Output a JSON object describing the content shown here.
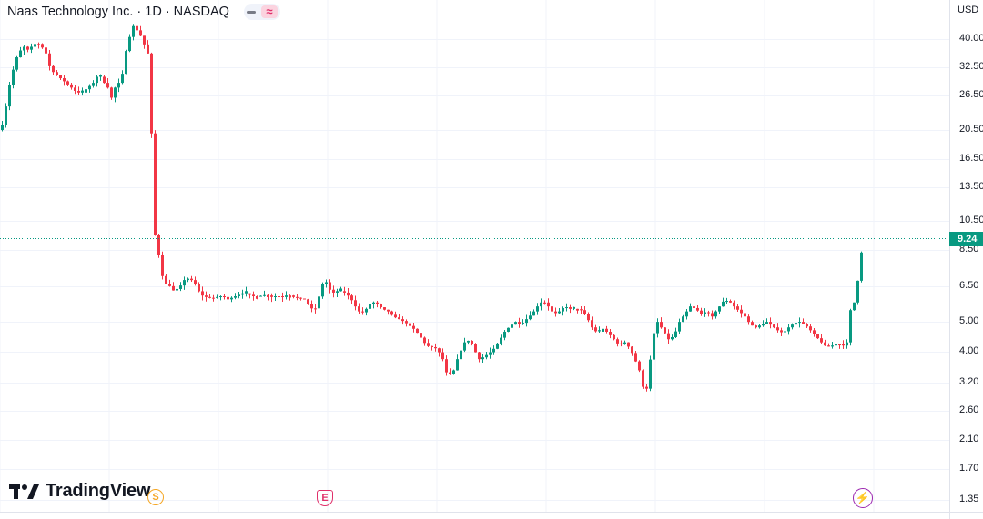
{
  "header": {
    "title": "Naas Technology Inc. · 1D · NASDAQ",
    "currency": "USD"
  },
  "logo": {
    "text": "TradingView"
  },
  "events": {
    "split": "S",
    "earnings": "E",
    "dividend": "⚡"
  },
  "colors": {
    "up": "#089981",
    "down": "#f23645",
    "grid": "#f0f3fa",
    "accent": "#089981"
  },
  "chart_data": {
    "type": "candlestick",
    "symbol": "Naas Technology Inc.",
    "interval": "1D",
    "exchange": "NASDAQ",
    "y_scale": "log",
    "ylim": [
      1.3,
      48
    ],
    "current_price": 9.24,
    "y_ticks": [
      "40.00",
      "32.50",
      "26.50",
      "20.50",
      "16.50",
      "13.50",
      "10.50",
      "8.50",
      "6.50",
      "5.00",
      "4.00",
      "3.20",
      "2.60",
      "2.10",
      "1.70",
      "1.35"
    ],
    "anchors": [
      [
        0,
        20.5
      ],
      [
        4,
        22
      ],
      [
        8,
        27
      ],
      [
        12,
        30
      ],
      [
        16,
        34
      ],
      [
        20,
        36
      ],
      [
        25,
        38
      ],
      [
        30,
        37
      ],
      [
        35,
        38
      ],
      [
        40,
        39
      ],
      [
        45,
        38
      ],
      [
        50,
        36
      ],
      [
        55,
        32
      ],
      [
        60,
        31
      ],
      [
        66,
        30
      ],
      [
        72,
        29
      ],
      [
        78,
        28
      ],
      [
        84,
        27
      ],
      [
        90,
        27
      ],
      [
        96,
        28
      ],
      [
        102,
        29
      ],
      [
        108,
        31
      ],
      [
        114,
        29
      ],
      [
        118,
        28
      ],
      [
        122,
        26
      ],
      [
        126,
        28
      ],
      [
        130,
        29
      ],
      [
        134,
        31
      ],
      [
        137,
        36
      ],
      [
        140,
        38
      ],
      [
        143,
        42
      ],
      [
        146,
        44
      ],
      [
        149,
        43
      ],
      [
        152,
        42
      ],
      [
        156,
        40
      ],
      [
        160,
        37
      ],
      [
        164,
        35
      ],
      [
        166,
        20
      ],
      [
        168,
        17
      ],
      [
        170,
        9.5
      ],
      [
        172,
        8.5
      ],
      [
        175,
        8
      ],
      [
        178,
        7
      ],
      [
        182,
        6.6
      ],
      [
        186,
        6.5
      ],
      [
        190,
        6.3
      ],
      [
        196,
        6.4
      ],
      [
        202,
        6.8
      ],
      [
        208,
        6.9
      ],
      [
        214,
        6.6
      ],
      [
        220,
        6.1
      ],
      [
        226,
        6.0
      ],
      [
        232,
        5.95
      ],
      [
        238,
        6.0
      ],
      [
        244,
        6.05
      ],
      [
        250,
        5.9
      ],
      [
        256,
        6.0
      ],
      [
        262,
        6.1
      ],
      [
        268,
        6.2
      ],
      [
        274,
        6.1
      ],
      [
        280,
        6.0
      ],
      [
        286,
        6.05
      ],
      [
        292,
        6.1
      ],
      [
        298,
        6.0
      ],
      [
        304,
        6.05
      ],
      [
        310,
        6.0
      ],
      [
        316,
        6.1
      ],
      [
        322,
        6.0
      ],
      [
        328,
        5.95
      ],
      [
        334,
        5.9
      ],
      [
        340,
        5.6
      ],
      [
        345,
        5.4
      ],
      [
        349,
        5.9
      ],
      [
        353,
        6.4
      ],
      [
        356,
        7.0
      ],
      [
        360,
        6.4
      ],
      [
        366,
        6.2
      ],
      [
        372,
        6.3
      ],
      [
        378,
        6.2
      ],
      [
        384,
        6.0
      ],
      [
        390,
        5.6
      ],
      [
        396,
        5.3
      ],
      [
        402,
        5.5
      ],
      [
        408,
        5.8
      ],
      [
        414,
        5.7
      ],
      [
        420,
        5.5
      ],
      [
        426,
        5.4
      ],
      [
        432,
        5.2
      ],
      [
        438,
        5.1
      ],
      [
        444,
        5.0
      ],
      [
        450,
        4.85
      ],
      [
        456,
        4.7
      ],
      [
        462,
        4.45
      ],
      [
        468,
        4.2
      ],
      [
        474,
        4.15
      ],
      [
        480,
        4.1
      ],
      [
        486,
        3.8
      ],
      [
        490,
        3.45
      ],
      [
        494,
        3.4
      ],
      [
        498,
        3.5
      ],
      [
        502,
        3.8
      ],
      [
        506,
        4.05
      ],
      [
        510,
        4.3
      ],
      [
        514,
        4.35
      ],
      [
        518,
        4.25
      ],
      [
        522,
        4.0
      ],
      [
        526,
        3.8
      ],
      [
        530,
        3.85
      ],
      [
        536,
        3.95
      ],
      [
        542,
        4.1
      ],
      [
        548,
        4.35
      ],
      [
        554,
        4.65
      ],
      [
        560,
        4.85
      ],
      [
        566,
        5.0
      ],
      [
        572,
        4.9
      ],
      [
        578,
        5.1
      ],
      [
        584,
        5.3
      ],
      [
        590,
        5.6
      ],
      [
        596,
        5.85
      ],
      [
        602,
        5.6
      ],
      [
        608,
        5.3
      ],
      [
        614,
        5.4
      ],
      [
        620,
        5.6
      ],
      [
        626,
        5.5
      ],
      [
        632,
        5.5
      ],
      [
        638,
        5.45
      ],
      [
        644,
        5.2
      ],
      [
        650,
        4.8
      ],
      [
        656,
        4.6
      ],
      [
        662,
        4.75
      ],
      [
        668,
        4.6
      ],
      [
        674,
        4.4
      ],
      [
        680,
        4.2
      ],
      [
        686,
        4.3
      ],
      [
        692,
        4.1
      ],
      [
        697,
        3.8
      ],
      [
        702,
        3.5
      ],
      [
        706,
        3.1
      ],
      [
        709,
        2.9
      ],
      [
        712,
        3.4
      ],
      [
        715,
        4.0
      ],
      [
        718,
        4.6
      ],
      [
        722,
        5.0
      ],
      [
        728,
        4.7
      ],
      [
        734,
        4.4
      ],
      [
        740,
        4.5
      ],
      [
        746,
        5.0
      ],
      [
        752,
        5.3
      ],
      [
        758,
        5.6
      ],
      [
        764,
        5.5
      ],
      [
        770,
        5.3
      ],
      [
        776,
        5.4
      ],
      [
        782,
        5.2
      ],
      [
        788,
        5.5
      ],
      [
        794,
        5.8
      ],
      [
        800,
        5.85
      ],
      [
        806,
        5.6
      ],
      [
        812,
        5.4
      ],
      [
        818,
        5.2
      ],
      [
        824,
        4.9
      ],
      [
        830,
        4.8
      ],
      [
        836,
        4.9
      ],
      [
        842,
        5.0
      ],
      [
        848,
        4.85
      ],
      [
        854,
        4.7
      ],
      [
        860,
        4.6
      ],
      [
        866,
        4.8
      ],
      [
        872,
        4.95
      ],
      [
        878,
        5.0
      ],
      [
        884,
        4.9
      ],
      [
        890,
        4.7
      ],
      [
        896,
        4.5
      ],
      [
        902,
        4.3
      ],
      [
        908,
        4.15
      ],
      [
        914,
        4.2
      ],
      [
        920,
        4.25
      ],
      [
        926,
        4.2
      ],
      [
        930,
        4.3
      ],
      [
        933,
        5.4
      ],
      [
        937,
        5.6
      ],
      [
        941,
        6.3
      ],
      [
        944,
        7.8
      ],
      [
        947,
        8.6
      ],
      [
        949,
        9.24
      ]
    ]
  }
}
